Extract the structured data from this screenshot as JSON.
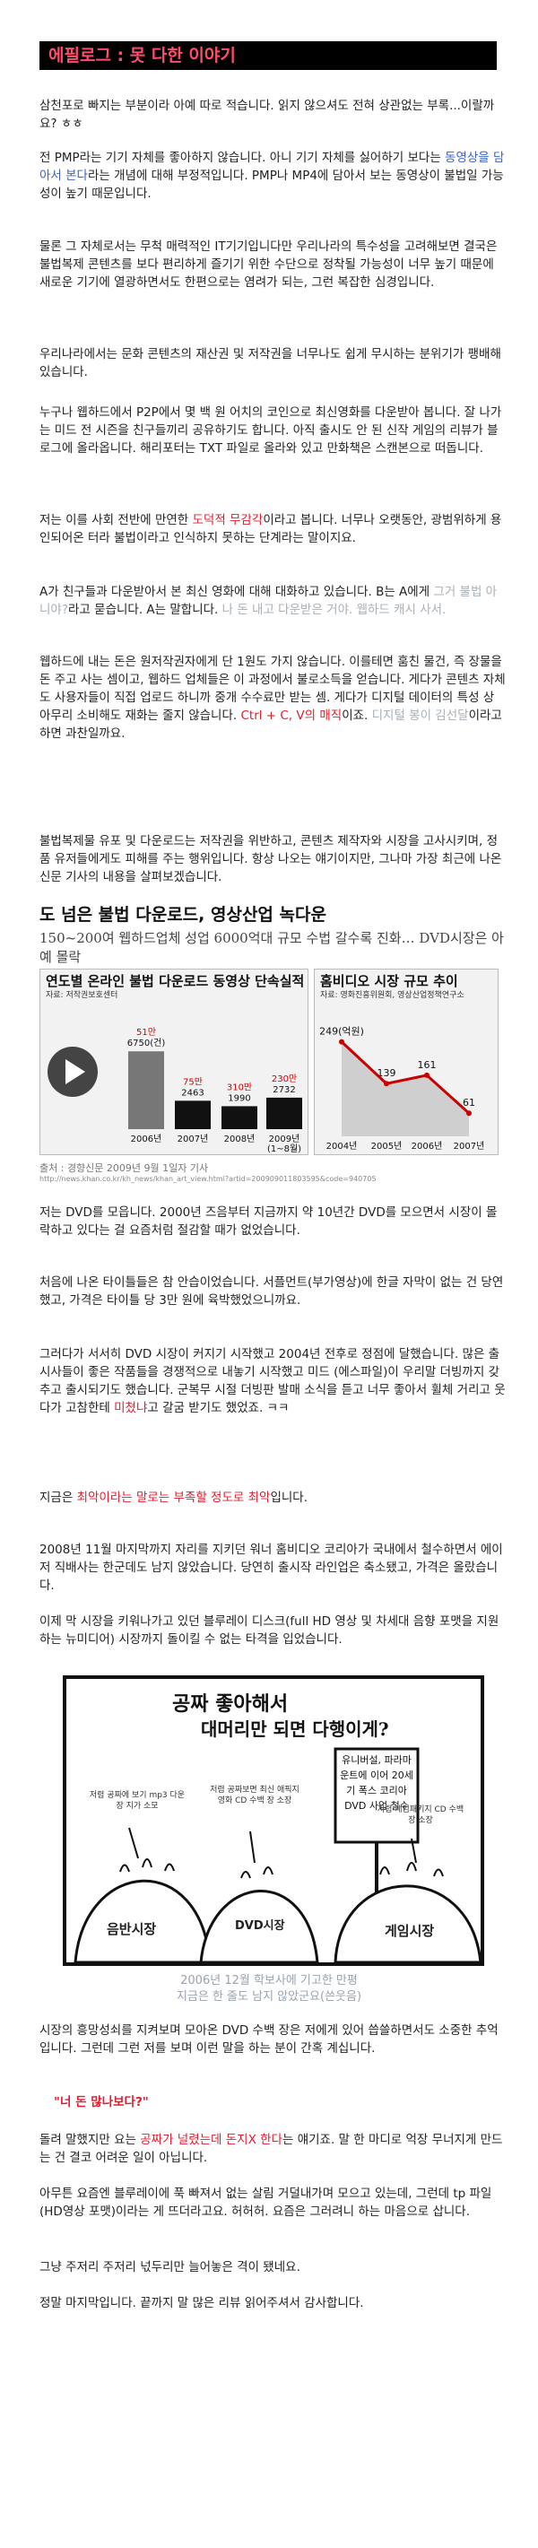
{
  "header": {
    "title": "에필로그 : 못 다한 이야기"
  },
  "paragraphs": {
    "p1": "삼천포로 빠지는 부분이라 아예 따로 적습니다. 읽지 않으셔도 전혀 상관없는 부록...이랄까요? ㅎㅎ",
    "p2a": "전 PMP라는 기기 자체를 좋아하지 않습니다. 아니 기기 자체를 싫어하기 보다는 ",
    "p2b": "동영상을 담아서 본다",
    "p2c": "라는 개념에 대해 부정적입니다. PMP나 MP4에 담아서 보는 동영상이 불법일 가능성이 높기 때문입니다.",
    "p3": "물론 그 자체로서는 무척 매력적인 IT기기입니다만 우리나라의 특수성을 고려해보면 결국은 불법복제 콘텐츠를 보다 편리하게 즐기기 위한 수단으로 정착될 가능성이 너무 높기 때문에 새로운 기기에 열광하면서도 한편으로는 염려가 되는, 그런 복잡한 심경입니다.",
    "p4": "우리나라에서는 문화 콘텐츠의 재산권 및 저작권을 너무나도 쉽게 무시하는 분위기가 팽배해 있습니다.",
    "p5": "누구나 웹하드에서 P2P에서 몇 백 원 어치의 코인으로 최신영화를 다운받아 봅니다. 잘 나가는 미드 전 시즌을 친구들끼리 공유하기도 합니다. 아직 출시도 안 된 신작 게임의 리뷰가 블로그에 올라옵니다. 해리포터는 TXT 파일로 올라와 있고 만화책은 스캔본으로 떠돕니다.",
    "p6a": "저는 이를 사회 전반에 만연한 ",
    "p6b": "도덕적 무감각",
    "p6c": "이라고 봅니다. 너무나 오랫동안, 광범위하게 용인되어온 터라 불법이라고 인식하지 못하는 단계라는 말이지요.",
    "p7a": "A가 친구들과 다운받아서 본 최신 영화에 대해 대화하고 있습니다. B는 A에게 ",
    "p7b": "그거 불법 아니야?",
    "p7c": "라고 묻습니다. A는 말합니다. ",
    "p7d": "나 돈 내고 다운받은 거야. 웹하드 캐시 사서.",
    "p8a": "웹하드에 내는 돈은 원저작권자에게 단 1원도 가지 않습니다. 이를테면 훔친 물건, 즉 장물을 돈 주고 사는 셈이고, 웹하드 업체들은 이 과정에서 불로소득을 얻습니다. 게다가 콘텐츠 자체도 사용자들이 직접 업로드 하니까 중개 수수료만 받는 셈. 게다가 디지털 데이터의 특성 상 아무리 소비해도 재화는 줄지 않습니다. ",
    "p8b": "Ctrl + C, V의 매직",
    "p8c": "이죠. ",
    "p8d": "디지털 봉이 김선달",
    "p8e": "이라고 하면 과찬일까요.",
    "p9": "불법복제물 유포 및 다운로드는 저작권을 위반하고, 콘텐츠 제작자와 시장을 고사시키며, 정품 유저들에게도 피해를 주는 행위입니다. 항상 나오는 얘기이지만, 그나마 가장 최근에 나온 신문 기사의 내용을 살펴보겠습니다."
  },
  "news": {
    "headline": "도 넘은 불법 다운로드, 영상산업 녹다운",
    "subhead": "150~200여 웹하드업체 성업 6000억대 규모 수법 갈수록 진화… DVD시장은 아예 몰락",
    "caption": "출처 : 경향신문 2009년 9월 1일자 기사",
    "url": "http://news.khan.co.kr/kh_news/khan_art_view.html?artid=200909011803595&code=940705"
  },
  "chart_data": [
    {
      "type": "bar",
      "title": "연도별 온라인 불법 다운로드 동영상 단속실적",
      "source": "자료: 저작권보호센터",
      "categories": [
        "2006년",
        "2007년",
        "2008년",
        "2009년\n(1~8월)"
      ],
      "series": [
        {
          "values": [
            6750,
            2463,
            1990,
            2732
          ]
        },
        {
          "values": [
            51,
            75,
            310,
            230
          ]
        }
      ],
      "labels_top": [
        "51만",
        "75만",
        "310만",
        "230만"
      ],
      "labels_bottom": [
        "6750(건)",
        "2463",
        "1990",
        "2732"
      ]
    },
    {
      "type": "line",
      "title": "홈비디오 시장 규모 추이",
      "source": "자료: 영화진흥위원회, 영상산업정책연구소",
      "categories": [
        "2004년",
        "2005년",
        "2006년",
        "2007년"
      ],
      "values": [
        249,
        139,
        161,
        61
      ],
      "value_labels": [
        "249(억원)",
        "139",
        "161",
        "61"
      ]
    }
  ],
  "after_chart": {
    "p10": "저는 DVD를 모읍니다. 2000년 즈음부터 지금까지 약 10년간 DVD를 모으면서 시장이 몰락하고 있다는 걸 요즘처럼 절감할 때가 없었습니다.",
    "p11": "처음에 나온 타이틀들은 참 안습이었습니다. 서플먼트(부가영상)에 한글 자막이 없는 건 당연했고, 가격은 타이틀 당 3만 원에 육박했었으니까요.",
    "p12": "그러다가 서서히 DVD 시장이 커지기 시작했고 2004년 전후로 정점에 달했습니다. 많은 출시사들이 좋은 작품들을 경쟁적으로 내놓기 시작했고 미드 (에스파일)이 우리말 더빙까지 갖추고 출시되기도 했습니다. 군복무 시절 더빙판 발매 소식을 듣고 너무 좋아서 휠체 거리고 웃다가 고참한테 ",
    "p12b": "미쳤냐",
    "p12c": "고 갈굼 받기도 했었죠. ㅋㅋ",
    "p13a": "지금은 ",
    "p13b": "최악이라는 말로는 부족할 정도로 최악",
    "p13c": "입니다.",
    "p14": "2008년 11월 마지막까지 자리를 지키던 워너 홈비디오 코리아가 국내에서 철수하면서 에이저 직배사는 한군데도 남지 않았습니다. 당연히 출시작 라인업은 축소됐고, 가격은 올랐습니다.",
    "p15": "이제 막 시장을 키워나가고 있던 블루레이 디스크(full HD 영상 및 차세대 음향 포맷을 지원하는 뉴미디어) 시장까지 돌이킬 수 없는 타격을 입었습니다."
  },
  "cartoon": {
    "title_line1": "공짜 좋아해서",
    "title_line2": "대머리만 되면 다행이게?",
    "sign": "유니버설, 파라마운트에 이어 20세기 폭스 코리아 DVD 사업 철수",
    "left_note": "저렴 공짜에 보기 mp3 다운 장 지가 소모",
    "mid_note": "저렴 공짜보면 최신 애픽지 영화 CD 수백 장 소장",
    "right_note": "저렴 게임패키지 CD 수백 장 소장",
    "head1": "음반시장",
    "head2": "DVD시장",
    "head3": "게임시장",
    "caption1": "2006년 12월 학보사에 기고한 만평",
    "caption2": "지금은 한 줄도 남지 않았군요(쓴웃음)"
  },
  "ending": {
    "p16": "시장의 흥망성쇠를 지켜보며 모아온 DVD 수백 장은 저에게 있어 씁쓸하면서도 소중한 추억입니다. 그런데 그런 저를 보며 이런 말을 하는 분이 간혹 계십니다.",
    "quote": "\"너 돈 많나보다?\"",
    "p17a": "돌려 말했지만 요는 ",
    "p17b": "공짜가 널렸는데 돈지X 한다",
    "p17c": "는 얘기죠. 말 한 마디로 억장 무너지게 만드는 건 결코 어려운 일이 아닙니다.",
    "p18": "아무튼 요즘엔 블루레이에 푹 빠져서 없는 살림 거덜내가며 모으고 있는데, 그런데 tp 파일(HD영상 포맷)이라는 게 뜨더라고요. 허허허. 요즘은 그러려니 하는 마음으로 삽니다.",
    "p19": "그냥 주저리 주저리 넋두리만 늘어놓은 격이 됐네요.",
    "p20": "정말 마지막입니다. 끝까지 말 많은 리뷰 읽어주셔서 감사합니다."
  },
  "colors": {
    "accent_red": "#e11d2e",
    "accent_blue": "#3b63c4",
    "header_bg": "#000000",
    "header_text": "#ff4d6d"
  }
}
